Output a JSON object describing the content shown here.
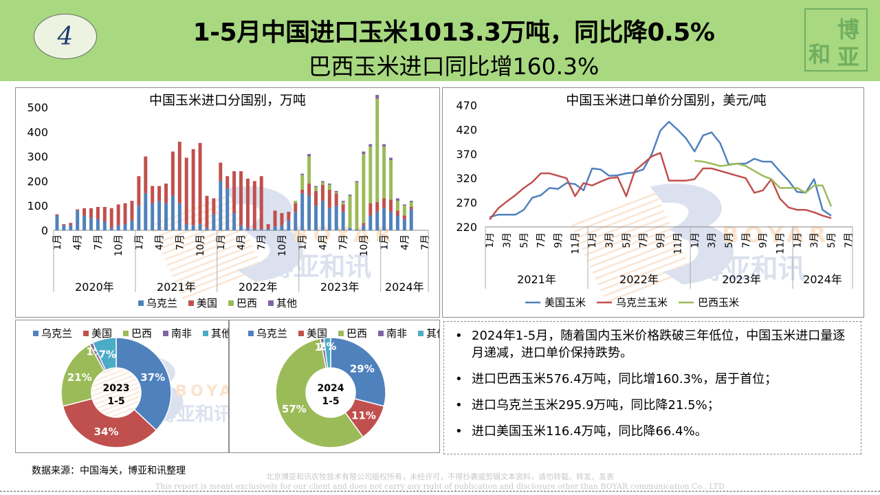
{
  "header": {
    "badge": "4",
    "title": "1-5月中国进口玉米1013.3万吨，同比降0.5%",
    "subtitle": "巴西玉米进口同比增160.3%",
    "seal_text": "和讯博亚"
  },
  "watermark": {
    "text_en": "BOYAR",
    "text_cn": "博亚和讯"
  },
  "colors": {
    "header_bg": "#a8d880",
    "ukraine": "#4f81bd",
    "usa": "#c0504d",
    "brazil": "#9bbb59",
    "southafrica": "#8064a2",
    "others": "#4bacc6"
  },
  "chart_data": [
    {
      "type": "bar",
      "stacked": true,
      "title": "中国玉米进口分国别，万吨",
      "ylim": [
        0,
        500
      ],
      "yticks": [
        0,
        100,
        200,
        300,
        400,
        500
      ],
      "years": [
        {
          "label": "2020年",
          "months": 12
        },
        {
          "label": "2021年",
          "months": 12
        },
        {
          "label": "2022年",
          "months": 12
        },
        {
          "label": "2023年",
          "months": 12
        },
        {
          "label": "2024年",
          "months": 7
        }
      ],
      "month_tick_labels": [
        "1月",
        "4月",
        "7月",
        "10月"
      ],
      "legend": "bottom",
      "series": [
        {
          "name": "乌克兰",
          "values": [
            60,
            20,
            20,
            80,
            60,
            50,
            45,
            35,
            10,
            20,
            25,
            40,
            100,
            150,
            110,
            120,
            110,
            140,
            110,
            25,
            20,
            25,
            10,
            65,
            200,
            170,
            70,
            20,
            10,
            5,
            5,
            5,
            15,
            20,
            40,
            75,
            150,
            140,
            100,
            120,
            90,
            100,
            75,
            10,
            5,
            20,
            60,
            75,
            90,
            75,
            60,
            45,
            85,
            null,
            null
          ]
        },
        {
          "name": "美国",
          "values": [
            5,
            5,
            10,
            5,
            30,
            40,
            50,
            60,
            80,
            85,
            85,
            80,
            120,
            150,
            70,
            60,
            80,
            180,
            250,
            270,
            310,
            330,
            130,
            65,
            75,
            50,
            170,
            220,
            200,
            195,
            215,
            20,
            65,
            50,
            35,
            35,
            15,
            50,
            60,
            65,
            75,
            50,
            30,
            0,
            0,
            10,
            50,
            40,
            40,
            50,
            20,
            15,
            10,
            null,
            null
          ]
        },
        {
          "name": "巴西",
          "values": [
            0,
            0,
            0,
            0,
            0,
            0,
            0,
            0,
            0,
            0,
            0,
            0,
            0,
            0,
            0,
            0,
            0,
            0,
            0,
            0,
            0,
            0,
            0,
            0,
            0,
            0,
            0,
            0,
            0,
            0,
            0,
            0,
            0,
            0,
            0,
            10,
            60,
            110,
            15,
            10,
            20,
            5,
            10,
            130,
            190,
            280,
            230,
            420,
            210,
            160,
            40,
            40,
            20,
            null,
            null
          ]
        },
        {
          "name": "其他",
          "values": [
            0,
            0,
            0,
            0,
            0,
            0,
            0,
            0,
            0,
            0,
            0,
            0,
            0,
            0,
            0,
            0,
            0,
            0,
            0,
            0,
            0,
            0,
            0,
            0,
            0,
            0,
            0,
            0,
            0,
            0,
            0,
            0,
            0,
            0,
            0,
            0,
            5,
            10,
            5,
            5,
            5,
            5,
            5,
            5,
            5,
            10,
            10,
            15,
            10,
            10,
            10,
            5,
            5,
            null,
            null
          ]
        }
      ]
    },
    {
      "type": "line",
      "title": "中国玉米进口单价分国别，美元/吨",
      "ylim": [
        220,
        470
      ],
      "yticks": [
        220,
        270,
        320,
        370,
        420,
        470
      ],
      "years": [
        {
          "label": "2021年",
          "months": 12
        },
        {
          "label": "2022年",
          "months": 12
        },
        {
          "label": "2023年",
          "months": 12
        },
        {
          "label": "2024年",
          "months": 7
        }
      ],
      "month_tick_labels": [
        "1月",
        "3月",
        "5月",
        "7月",
        "9月",
        "11月"
      ],
      "legend": "bottom",
      "series": [
        {
          "name": "美国玉米",
          "values": [
            240,
            245,
            245,
            245,
            255,
            280,
            285,
            300,
            298,
            310,
            308,
            295,
            340,
            338,
            325,
            326,
            330,
            332,
            338,
            370,
            418,
            436,
            420,
            402,
            375,
            408,
            414,
            392,
            348,
            350,
            350,
            360,
            354,
            354,
            334,
            315,
            292,
            290,
            318,
            255,
            243,
            null,
            null
          ]
        },
        {
          "name": "乌克兰玉米",
          "values": [
            235,
            258,
            272,
            285,
            300,
            312,
            330,
            330,
            325,
            320,
            283,
            310,
            305,
            313,
            320,
            322,
            283,
            335,
            350,
            365,
            372,
            315,
            315,
            315,
            318,
            340,
            340,
            335,
            330,
            325,
            320,
            290,
            295,
            318,
            278,
            260,
            255,
            255,
            250,
            243,
            238,
            null,
            null
          ]
        },
        {
          "name": "巴西玉米",
          "values": [
            null,
            null,
            null,
            null,
            null,
            null,
            null,
            null,
            null,
            null,
            null,
            null,
            null,
            null,
            null,
            null,
            null,
            null,
            null,
            null,
            null,
            null,
            null,
            null,
            356,
            354,
            350,
            345,
            347,
            350,
            345,
            335,
            325,
            318,
            300,
            300,
            300,
            290,
            305,
            305,
            262,
            null,
            null
          ]
        }
      ]
    },
    {
      "type": "pie",
      "donut": true,
      "center_label": [
        "2023",
        "1-5"
      ],
      "legend": "top",
      "labels": [
        "乌克兰",
        "美国",
        "巴西",
        "南非",
        "其他"
      ],
      "values": [
        37,
        34,
        21,
        1,
        7
      ],
      "value_labels": [
        "37%",
        "34%",
        "21%",
        "1%",
        "7%"
      ]
    },
    {
      "type": "pie",
      "donut": true,
      "center_label": [
        "2024",
        "1-5"
      ],
      "legend": "top",
      "labels": [
        "乌克兰",
        "美国",
        "巴西",
        "南非",
        "其他"
      ],
      "values": [
        29,
        11,
        57,
        1,
        2
      ],
      "value_labels": [
        "29%",
        "11%",
        "57%",
        "1%",
        "2%"
      ]
    }
  ],
  "bullets": [
    "2024年1-5月，随着国内玉米价格跌破三年低位，中国玉米进口量逐月递减，进口单价保持跌势。",
    "进口巴西玉米576.4万吨，同比增160.3%，居于首位；",
    "进口乌克兰玉米295.9万吨，同比降21.5%；",
    "进口美国玉米116.4万吨，同比降66.4%。"
  ],
  "source": "数据来源：中国海关，博亚和讯整理",
  "copyright": {
    "cn": "北京博亚和讯农牧技术有限公司版权所有，未经许可，不得抄袭或剪辑文本资料，请勿转载、转发、发表",
    "en": "This report is meant exclusively for our client and does not carry any right of publication and disclosure other than BOYAR communication Co., LTD"
  }
}
